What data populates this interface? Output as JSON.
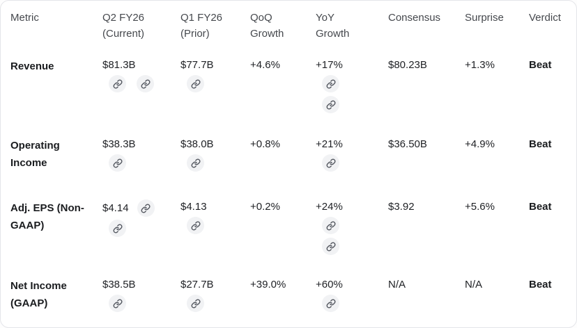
{
  "table": {
    "columns": [
      {
        "id": "metric",
        "lines": [
          "Metric"
        ]
      },
      {
        "id": "q2",
        "lines": [
          "Q2 FY26",
          "(Current)"
        ]
      },
      {
        "id": "q1",
        "lines": [
          "Q1 FY26",
          "(Prior)"
        ]
      },
      {
        "id": "qoq",
        "lines": [
          "QoQ",
          "Growth"
        ]
      },
      {
        "id": "yoy",
        "lines": [
          "YoY",
          "Growth"
        ]
      },
      {
        "id": "consensus",
        "lines": [
          "Consensus"
        ]
      },
      {
        "id": "surprise",
        "lines": [
          "Surprise"
        ]
      },
      {
        "id": "verdict",
        "lines": [
          "Verdict"
        ]
      }
    ],
    "rows": [
      {
        "metric": "Revenue",
        "q2": {
          "value": "$81.3B",
          "links_below": 2,
          "below_layout": "row"
        },
        "q1": {
          "value": "$77.7B",
          "links_below": 1,
          "below_layout": "row"
        },
        "qoq": {
          "value": "+4.6%"
        },
        "yoy": {
          "value": "+17%",
          "links_below": 2,
          "below_layout": "column"
        },
        "consensus": {
          "value": "$80.23B"
        },
        "surprise": {
          "value": "+1.3%"
        },
        "verdict": {
          "value": "Beat"
        }
      },
      {
        "metric": "Operating Income",
        "q2": {
          "value": "$38.3B",
          "links_below": 1,
          "below_layout": "row"
        },
        "q1": {
          "value": "$38.0B",
          "links_below": 1,
          "below_layout": "row"
        },
        "qoq": {
          "value": "+0.8%"
        },
        "yoy": {
          "value": "+21%",
          "links_below": 1,
          "below_layout": "column"
        },
        "consensus": {
          "value": "$36.50B"
        },
        "surprise": {
          "value": "+4.9%"
        },
        "verdict": {
          "value": "Beat"
        }
      },
      {
        "metric": "Adj. EPS (Non-GAAP)",
        "q2": {
          "value": "$4.14",
          "links_inline": 1,
          "links_below": 1,
          "below_layout": "row"
        },
        "q1": {
          "value": "$4.13",
          "links_below": 1,
          "below_layout": "row"
        },
        "qoq": {
          "value": "+0.2%"
        },
        "yoy": {
          "value": "+24%",
          "links_below": 2,
          "below_layout": "column"
        },
        "consensus": {
          "value": "$3.92"
        },
        "surprise": {
          "value": "+5.6%"
        },
        "verdict": {
          "value": "Beat"
        }
      },
      {
        "metric": "Net Income (GAAP)",
        "q2": {
          "value": "$38.5B",
          "links_below": 1,
          "below_layout": "row"
        },
        "q1": {
          "value": "$27.7B",
          "links_below": 1,
          "below_layout": "row"
        },
        "qoq": {
          "value": "+39.0%"
        },
        "yoy": {
          "value": "+60%",
          "links_below": 1,
          "below_layout": "column"
        },
        "consensus": {
          "value": "N/A"
        },
        "surprise": {
          "value": "N/A"
        },
        "verdict": {
          "value": "Beat"
        }
      }
    ]
  },
  "icons": {
    "citation": "link-icon"
  },
  "colors": {
    "card_background": "#ffffff",
    "card_border": "#e4e5e9",
    "header_text": "#45484d",
    "value_text": "#202226",
    "emphasis_text": "#1a1c1f",
    "chip_background": "#f1f2f4",
    "chip_icon": "#52565e"
  }
}
